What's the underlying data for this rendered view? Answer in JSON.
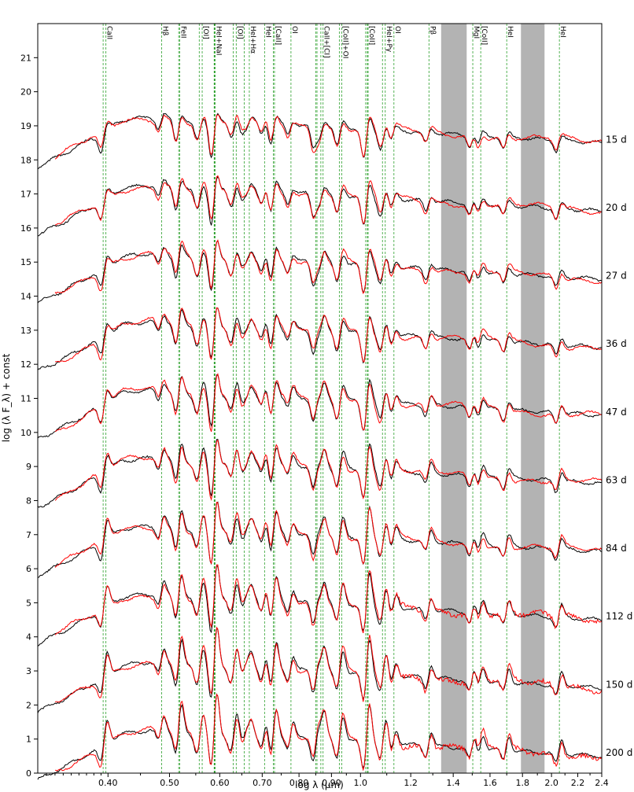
{
  "chart_data": {
    "type": "line",
    "xlabel": "log λ (μm)",
    "ylabel": "log (λ F_λ) + const",
    "x_scale": "log",
    "xlim": [
      0.31,
      2.4
    ],
    "ylim": [
      0,
      22
    ],
    "x_ticks": [
      0.4,
      0.5,
      0.6,
      0.7,
      0.8,
      0.9,
      1.0,
      1.2,
      1.4,
      1.6,
      1.8,
      2.0,
      2.2,
      2.4
    ],
    "x_tick_labels": [
      "0.40",
      "0.50",
      "0.60",
      "0.70",
      "0.80",
      "0.90",
      "1.0",
      "1.2",
      "1.4",
      "1.6",
      "1.8",
      "2.0",
      "2.2",
      "2.4"
    ],
    "y_ticks": [
      0,
      1,
      2,
      3,
      4,
      5,
      6,
      7,
      8,
      9,
      10,
      11,
      12,
      13,
      14,
      15,
      16,
      17,
      18,
      19,
      20,
      21
    ],
    "y_tick_labels": [
      "0",
      "1",
      "2",
      "3",
      "4",
      "5",
      "6",
      "7",
      "8",
      "9",
      "10",
      "11",
      "12",
      "13",
      "14",
      "15",
      "16",
      "17",
      "18",
      "19",
      "20",
      "21"
    ],
    "grid": false,
    "masked_bands": [
      [
        1.34,
        1.47
      ],
      [
        1.79,
        1.95
      ]
    ],
    "line_labels": [
      {
        "label": "CaII",
        "x": [
          0.393,
          0.397
        ]
      },
      {
        "label": "Hβ",
        "x": [
          0.486
        ]
      },
      {
        "label": "FeII",
        "x": [
          0.517,
          0.519
        ]
      },
      {
        "label": "[OI]",
        "x": [
          0.557,
          0.563
        ]
      },
      {
        "label": "HeI+NaI",
        "x": [
          0.588,
          0.589,
          0.59
        ]
      },
      {
        "label": "[OI]",
        "x": [
          0.63,
          0.637
        ]
      },
      {
        "label": "HeI+Hα",
        "x": [
          0.656,
          0.668
        ]
      },
      {
        "label": "HeI",
        "x": [
          0.706
        ]
      },
      {
        "label": "[CaII]",
        "x": [
          0.729,
          0.732
        ]
      },
      {
        "label": "OI",
        "x": [
          0.777
        ]
      },
      {
        "label": "CaII+[CI]",
        "x": [
          0.85,
          0.854,
          0.866,
          0.873
        ]
      },
      {
        "label": "[CoII]+OI",
        "x": [
          0.926,
          0.934
        ]
      },
      {
        "label": "[CoII]",
        "x": [
          1.019,
          1.025,
          1.028
        ]
      },
      {
        "label": "HeI+Pγ",
        "x": [
          1.083,
          1.094
        ]
      },
      {
        "label": "OI",
        "x": [
          1.129
        ]
      },
      {
        "label": "Pβ",
        "x": [
          1.282
        ]
      },
      {
        "label": "MgI",
        "x": [
          1.503
        ]
      },
      {
        "label": "[CoII]",
        "x": [
          1.547
        ]
      },
      {
        "label": "HeI",
        "x": [
          1.7
        ]
      },
      {
        "label": "HeI",
        "x": [
          2.058
        ]
      }
    ],
    "line_color": "#2ca02c",
    "series_colors": {
      "black": "#000000",
      "red": "#ff0000"
    },
    "epochs": [
      {
        "label": "15 d",
        "base": 19.1
      },
      {
        "label": "20 d",
        "base": 17.1
      },
      {
        "label": "27 d",
        "base": 15.1
      },
      {
        "label": "36 d",
        "base": 13.1
      },
      {
        "label": "47 d",
        "base": 11.1
      },
      {
        "label": "63 d",
        "base": 9.1
      },
      {
        "label": "84 d",
        "base": 7.1
      },
      {
        "label": "112 d",
        "base": 5.1
      },
      {
        "label": "150 d",
        "base": 3.1
      },
      {
        "label": "200 d",
        "base": 1.1
      }
    ]
  }
}
